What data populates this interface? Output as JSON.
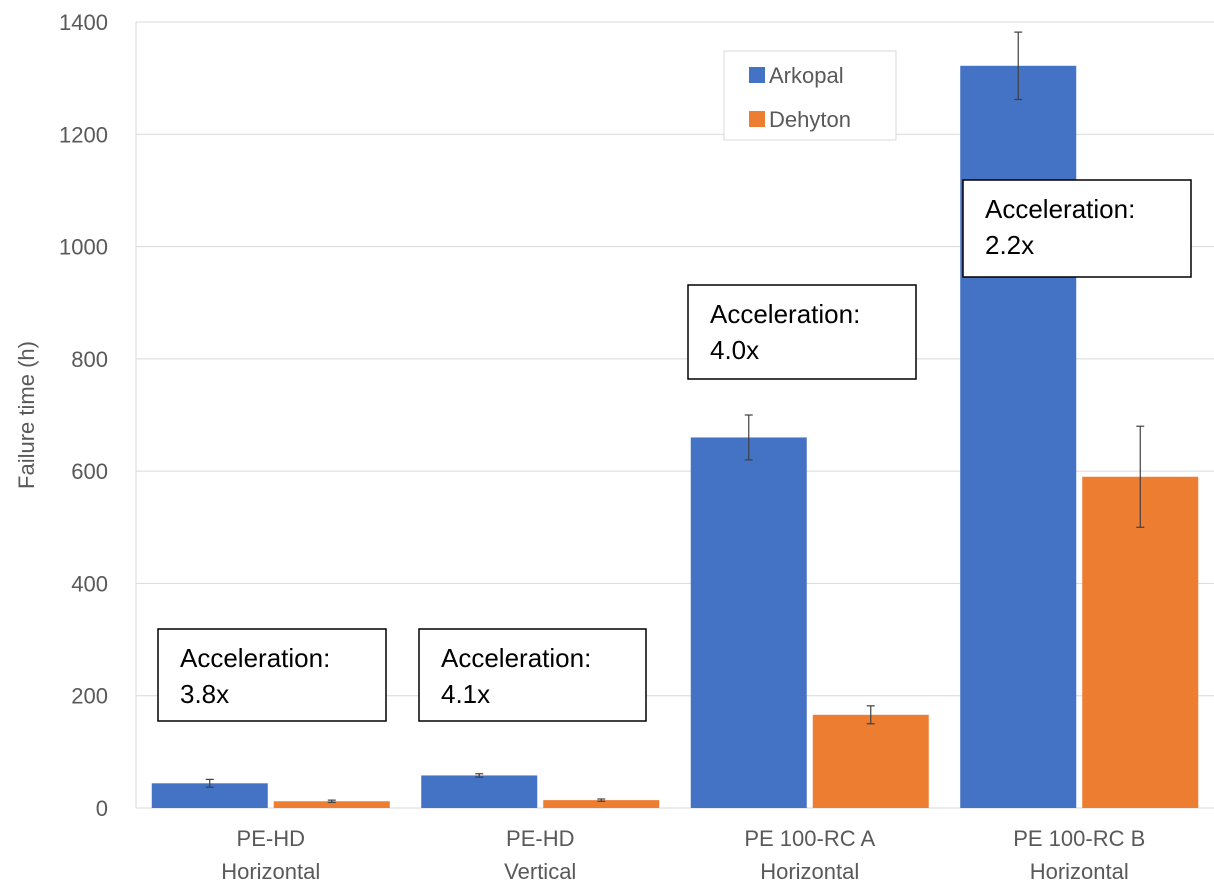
{
  "chart_data": {
    "type": "bar",
    "categories": [
      [
        "PE-HD",
        "Horizontal"
      ],
      [
        "PE-HD",
        "Vertical"
      ],
      [
        "PE 100-RC A",
        "Horizontal"
      ],
      [
        "PE 100-RC B",
        "Horizontal"
      ]
    ],
    "series": [
      {
        "name": "Arkopal",
        "color": "#4472c4",
        "values": [
          44,
          58,
          660,
          1322
        ],
        "errors": [
          7,
          3,
          40,
          60
        ]
      },
      {
        "name": "Dehyton",
        "color": "#ed7d31",
        "values": [
          12,
          14,
          166,
          590
        ],
        "errors": [
          2,
          2,
          16,
          90
        ]
      }
    ],
    "ylabel": "Failure time (h)",
    "ylim": [
      0,
      1400
    ],
    "yticks": [
      0,
      200,
      400,
      600,
      800,
      1000,
      1200,
      1400
    ],
    "grid": true,
    "legend_position": "top-center",
    "annotations": [
      [
        "Acceleration:",
        "3.8x"
      ],
      [
        "Acceleration:",
        "4.1x"
      ],
      [
        "Acceleration:",
        "4.0x"
      ],
      [
        "Acceleration:",
        "2.2x"
      ]
    ]
  }
}
